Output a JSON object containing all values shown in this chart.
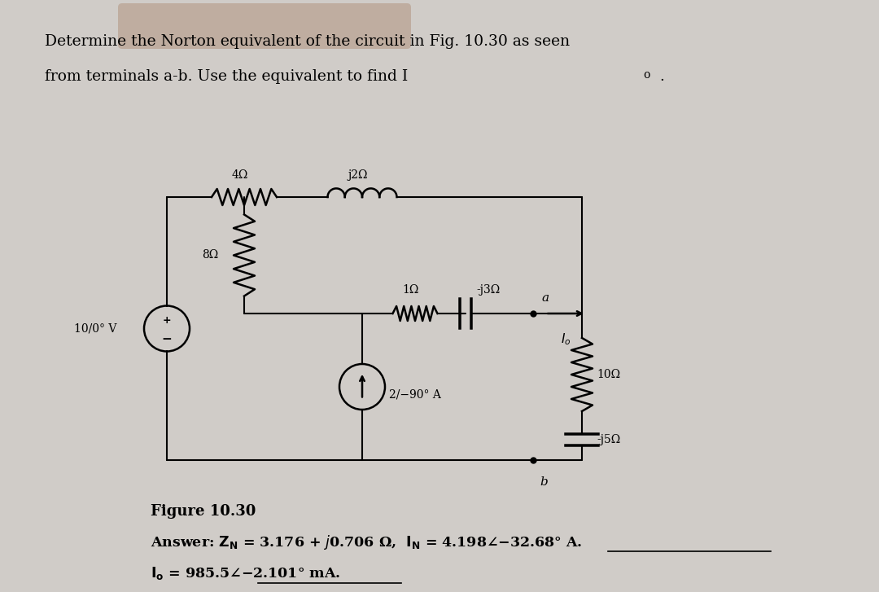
{
  "bg_color": "#d0ccc8",
  "title_text1": "Determine the Norton equivalent of the circuit in Fig. 10.30 as seen",
  "title_text2": "from terminals a-b. Use the equivalent to find I",
  "title_text2_sub": "o",
  "figure_label": "Figure 10.30",
  "answer_line1": "Answer: Z",
  "answer_line1_sub": "N",
  "answer_line1_rest": " = 3.176 + j0.706 Ω, I",
  "answer_line1_sub2": "N",
  "answer_line1_rest2": " = 4.198∠−32.68° A.",
  "answer_line2": "I",
  "answer_line2_sub": "o",
  "answer_line2_rest": " = 985.5∠−2.101° mA.",
  "label_4ohm": "4Ω",
  "label_j2ohm": "j2Ω",
  "label_8ohm": "8Ω",
  "label_1ohm": "1Ω",
  "label_j3ohm": "-j3Ω",
  "label_10ohm": "10Ω",
  "label_j5ohm": "-j5Ω",
  "label_vs": "10/0° V",
  "label_is": "2/−90° A",
  "label_Io": "I",
  "label_Io_sub": "o",
  "label_a": "a",
  "label_b": "b"
}
